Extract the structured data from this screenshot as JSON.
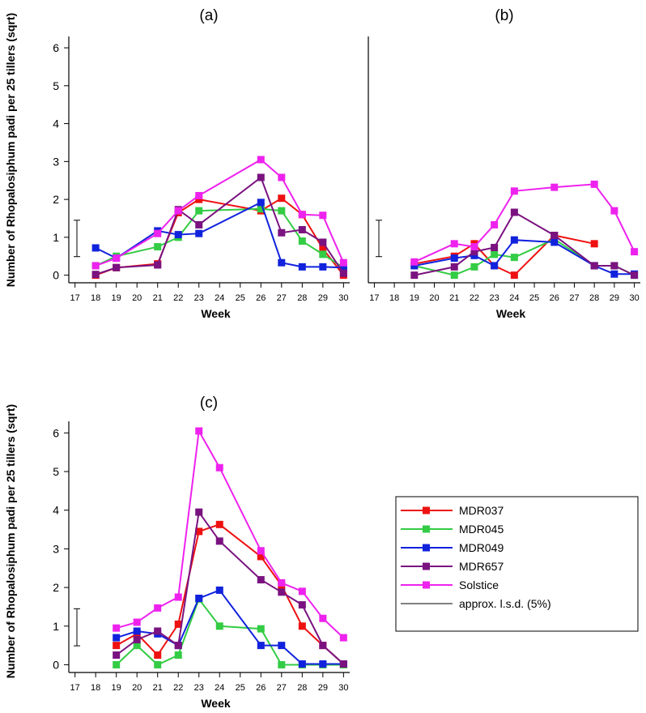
{
  "figure": {
    "ylabel": "Number of Rhopalosiphum padi per 25 tillers (sqrt)",
    "xlabel": "Week"
  },
  "legend": {
    "items": [
      "MDR037",
      "MDR045",
      "MDR049",
      "MDR657",
      "Solstice",
      "approx. l.s.d. (5%)"
    ]
  },
  "chart_data": [
    {
      "type": "line",
      "title": "(a)",
      "xlabel": "Week",
      "ylabel": "Number of Rhopalosiphum padi per 25 tillers (sqrt)",
      "x_ticks": [
        17,
        18,
        19,
        20,
        21,
        22,
        23,
        24,
        25,
        26,
        27,
        28,
        29,
        30
      ],
      "y_ticks": [
        0,
        1,
        2,
        3,
        4,
        5,
        6
      ],
      "xlim": [
        16.7,
        30.3
      ],
      "ylim": [
        -0.2,
        6.3
      ],
      "lsd": {
        "center": 0.97,
        "halfwidth": 0.48
      },
      "series": [
        {
          "name": "MDR037",
          "color": "#ee1111",
          "points": [
            [
              18,
              0.0
            ],
            [
              19,
              0.2
            ],
            [
              21,
              0.3
            ],
            [
              22,
              1.65
            ],
            [
              23,
              2.0
            ],
            [
              26,
              1.7
            ],
            [
              27,
              2.03
            ],
            [
              28,
              1.6
            ],
            [
              29,
              0.7
            ],
            [
              30,
              0.0
            ]
          ]
        },
        {
          "name": "MDR045",
          "color": "#33cc44",
          "points": [
            [
              18,
              0.25
            ],
            [
              19,
              0.5
            ],
            [
              21,
              0.75
            ],
            [
              22,
              1.0
            ],
            [
              23,
              1.7
            ],
            [
              26,
              1.75
            ],
            [
              27,
              1.7
            ],
            [
              28,
              0.9
            ],
            [
              29,
              0.55
            ],
            [
              30,
              0.2
            ]
          ]
        },
        {
          "name": "MDR049",
          "color": "#1122dd",
          "points": [
            [
              18,
              0.72
            ],
            [
              19,
              0.45
            ],
            [
              21,
              1.17
            ],
            [
              22,
              1.07
            ],
            [
              23,
              1.1
            ],
            [
              26,
              1.92
            ],
            [
              27,
              0.33
            ],
            [
              28,
              0.22
            ],
            [
              29,
              0.22
            ],
            [
              30,
              0.2
            ]
          ]
        },
        {
          "name": "MDR657",
          "color": "#7a1280",
          "points": [
            [
              18,
              0.02
            ],
            [
              19,
              0.2
            ],
            [
              21,
              0.27
            ],
            [
              22,
              1.73
            ],
            [
              23,
              1.33
            ],
            [
              26,
              2.58
            ],
            [
              27,
              1.12
            ],
            [
              28,
              1.2
            ],
            [
              29,
              0.87
            ],
            [
              30,
              0.05
            ]
          ]
        },
        {
          "name": "Solstice",
          "color": "#ee22ee",
          "points": [
            [
              18,
              0.25
            ],
            [
              19,
              0.45
            ],
            [
              21,
              1.1
            ],
            [
              22,
              1.7
            ],
            [
              23,
              2.1
            ],
            [
              26,
              3.05
            ],
            [
              27,
              2.58
            ],
            [
              28,
              1.6
            ],
            [
              29,
              1.58
            ],
            [
              30,
              0.33
            ]
          ]
        }
      ]
    },
    {
      "type": "line",
      "title": "(b)",
      "xlabel": "Week",
      "ylabel": "",
      "x_ticks": [
        17,
        18,
        19,
        20,
        21,
        22,
        23,
        24,
        25,
        26,
        27,
        28,
        29,
        30
      ],
      "y_ticks": [],
      "xlim": [
        16.7,
        30.3
      ],
      "ylim": [
        -0.2,
        6.3
      ],
      "lsd": {
        "center": 0.97,
        "halfwidth": 0.48
      },
      "series": [
        {
          "name": "MDR037",
          "color": "#ee1111",
          "points": [
            [
              19,
              0.3
            ],
            [
              21,
              0.5
            ],
            [
              22,
              0.83
            ],
            [
              23,
              0.25
            ],
            [
              24,
              0.0
            ],
            [
              26,
              1.05
            ],
            [
              28,
              0.83
            ]
          ]
        },
        {
          "name": "MDR045",
          "color": "#33cc44",
          "points": [
            [
              19,
              0.25
            ],
            [
              21,
              0.0
            ],
            [
              22,
              0.22
            ],
            [
              23,
              0.55
            ],
            [
              24,
              0.47
            ],
            [
              26,
              0.95
            ],
            [
              28,
              0.25
            ],
            [
              29,
              0.25
            ],
            [
              30,
              0.0
            ]
          ]
        },
        {
          "name": "MDR049",
          "color": "#1122dd",
          "points": [
            [
              19,
              0.25
            ],
            [
              21,
              0.45
            ],
            [
              22,
              0.52
            ],
            [
              23,
              0.25
            ],
            [
              24,
              0.93
            ],
            [
              26,
              0.87
            ],
            [
              28,
              0.25
            ],
            [
              29,
              0.03
            ],
            [
              30,
              0.03
            ]
          ]
        },
        {
          "name": "MDR657",
          "color": "#7a1280",
          "points": [
            [
              19,
              0.0
            ],
            [
              21,
              0.22
            ],
            [
              22,
              0.62
            ],
            [
              23,
              0.73
            ],
            [
              24,
              1.66
            ],
            [
              26,
              1.05
            ],
            [
              28,
              0.25
            ],
            [
              29,
              0.25
            ],
            [
              30,
              0.0
            ]
          ]
        },
        {
          "name": "Solstice",
          "color": "#ee22ee",
          "points": [
            [
              19,
              0.35
            ],
            [
              21,
              0.83
            ],
            [
              22,
              0.75
            ],
            [
              23,
              1.33
            ],
            [
              24,
              2.22
            ],
            [
              26,
              2.32
            ],
            [
              28,
              2.4
            ],
            [
              29,
              1.7
            ],
            [
              30,
              0.62
            ]
          ]
        }
      ]
    },
    {
      "type": "line",
      "title": "(c)",
      "xlabel": "Week",
      "ylabel": "Number of Rhopalosiphum padi per 25 tillers (sqrt)",
      "x_ticks": [
        17,
        18,
        19,
        20,
        21,
        22,
        23,
        24,
        25,
        26,
        27,
        28,
        29,
        30
      ],
      "y_ticks": [
        0,
        1,
        2,
        3,
        4,
        5,
        6
      ],
      "xlim": [
        16.7,
        30.3
      ],
      "ylim": [
        -0.2,
        6.3
      ],
      "lsd": {
        "center": 0.97,
        "halfwidth": 0.48
      },
      "series": [
        {
          "name": "MDR037",
          "color": "#ee1111",
          "points": [
            [
              19,
              0.5
            ],
            [
              20,
              0.8
            ],
            [
              21,
              0.25
            ],
            [
              22,
              1.05
            ],
            [
              23,
              3.45
            ],
            [
              24,
              3.63
            ],
            [
              26,
              2.8
            ],
            [
              27,
              2.05
            ],
            [
              28,
              1.0
            ],
            [
              29,
              0.5
            ],
            [
              30,
              0.02
            ]
          ]
        },
        {
          "name": "MDR045",
          "color": "#33cc44",
          "points": [
            [
              19,
              0.0
            ],
            [
              20,
              0.5
            ],
            [
              21,
              0.0
            ],
            [
              22,
              0.25
            ],
            [
              23,
              1.7
            ],
            [
              24,
              1.0
            ],
            [
              26,
              0.93
            ],
            [
              27,
              0.0
            ],
            [
              28,
              0.0
            ],
            [
              29,
              0.0
            ],
            [
              30,
              0.0
            ]
          ]
        },
        {
          "name": "MDR049",
          "color": "#1122dd",
          "points": [
            [
              19,
              0.7
            ],
            [
              20,
              0.87
            ],
            [
              21,
              0.8
            ],
            [
              22,
              0.5
            ],
            [
              23,
              1.72
            ],
            [
              24,
              1.93
            ],
            [
              26,
              0.5
            ],
            [
              27,
              0.5
            ],
            [
              28,
              0.02
            ],
            [
              29,
              0.02
            ],
            [
              30,
              0.02
            ]
          ]
        },
        {
          "name": "MDR657",
          "color": "#7a1280",
          "points": [
            [
              19,
              0.25
            ],
            [
              20,
              0.65
            ],
            [
              21,
              0.87
            ],
            [
              22,
              0.5
            ],
            [
              23,
              3.95
            ],
            [
              24,
              3.2
            ],
            [
              26,
              2.2
            ],
            [
              27,
              1.88
            ],
            [
              28,
              1.55
            ],
            [
              29,
              0.5
            ],
            [
              30,
              0.02
            ]
          ]
        },
        {
          "name": "Solstice",
          "color": "#ee22ee",
          "points": [
            [
              19,
              0.95
            ],
            [
              20,
              1.1
            ],
            [
              21,
              1.47
            ],
            [
              22,
              1.75
            ],
            [
              23,
              6.05
            ],
            [
              24,
              5.1
            ],
            [
              26,
              2.95
            ],
            [
              27,
              2.12
            ],
            [
              28,
              1.9
            ],
            [
              29,
              1.2
            ],
            [
              30,
              0.7
            ]
          ]
        }
      ]
    }
  ]
}
